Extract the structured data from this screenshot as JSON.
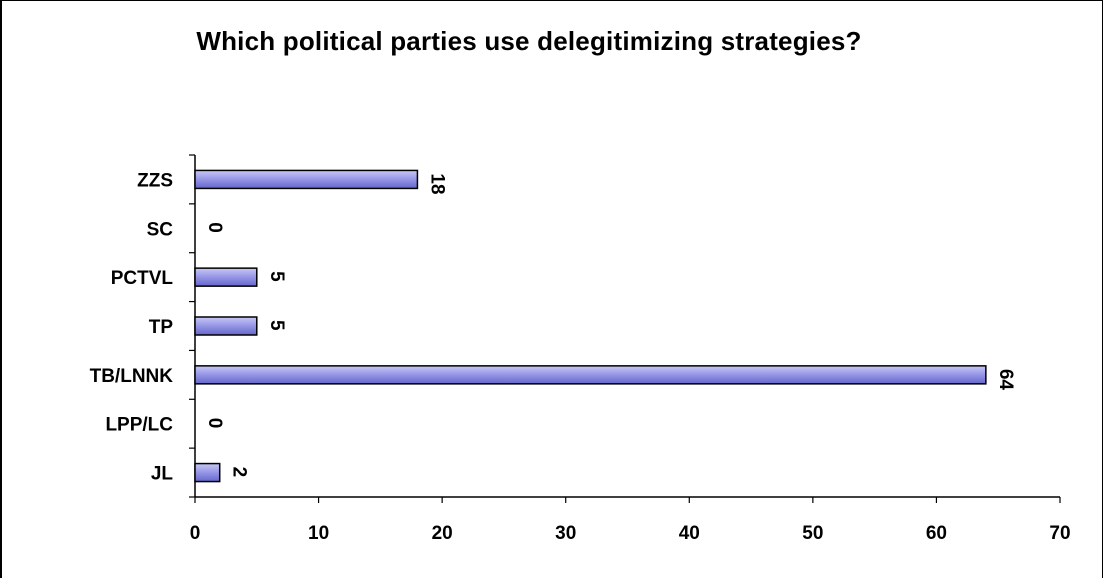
{
  "chart_data": {
    "type": "bar",
    "orientation": "horizontal",
    "title": "Which political parties use delegitimizing strategies?",
    "categories": [
      "ZZS",
      "SC",
      "PCTVL",
      "TP",
      "TB/LNNK",
      "LPP/LC",
      "JL"
    ],
    "values": [
      18,
      0,
      5,
      5,
      64,
      0,
      2
    ],
    "xlim": [
      0,
      70
    ],
    "x_ticks": [
      0,
      10,
      20,
      30,
      40,
      50,
      60,
      70
    ],
    "xlabel": "",
    "ylabel": "",
    "grid": false,
    "legend": "none",
    "data_labels": "rotated 90 degrees clockwise, right of bar",
    "colors": {
      "bar_fill_light": "#c8c8f5",
      "bar_fill_mid": "#9a9ae8",
      "bar_fill_dark": "#6666cc",
      "bar_stroke": "#000000",
      "axis": "#000000"
    }
  }
}
